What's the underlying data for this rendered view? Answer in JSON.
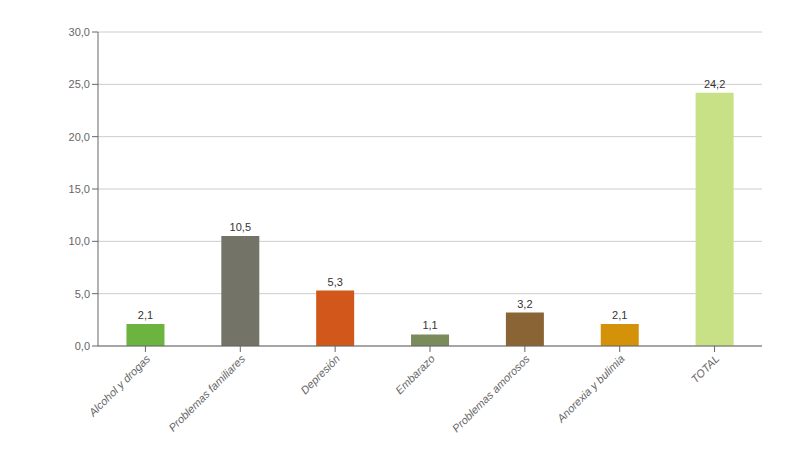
{
  "chart_data": {
    "type": "bar",
    "categories": [
      "Alcohol y drogas",
      "Problemas familiares",
      "Depresión",
      "Embarazo",
      "Problemas amorosos",
      "Anorexia y bulimia",
      "TOTAL"
    ],
    "values": [
      2.1,
      10.5,
      5.3,
      1.1,
      3.2,
      2.1,
      24.2
    ],
    "value_labels": [
      "2,1",
      "10,5",
      "5,3",
      "1,1",
      "3,2",
      "2,1",
      "24,2"
    ],
    "data_labels": true,
    "colors": [
      "#6db33f",
      "#737368",
      "#d2571a",
      "#7a8c5a",
      "#8b6435",
      "#d4920a",
      "#c8e086"
    ],
    "ylim": [
      0,
      30
    ],
    "yticks": [
      {
        "value": 0,
        "label": "0,0"
      },
      {
        "value": 5,
        "label": "5,0"
      },
      {
        "value": 10,
        "label": "10,0"
      },
      {
        "value": 15,
        "label": "15,0"
      },
      {
        "value": 20,
        "label": "20,0"
      },
      {
        "value": 25,
        "label": "25,0"
      },
      {
        "value": 30,
        "label": "30,0"
      }
    ],
    "grid": true
  }
}
